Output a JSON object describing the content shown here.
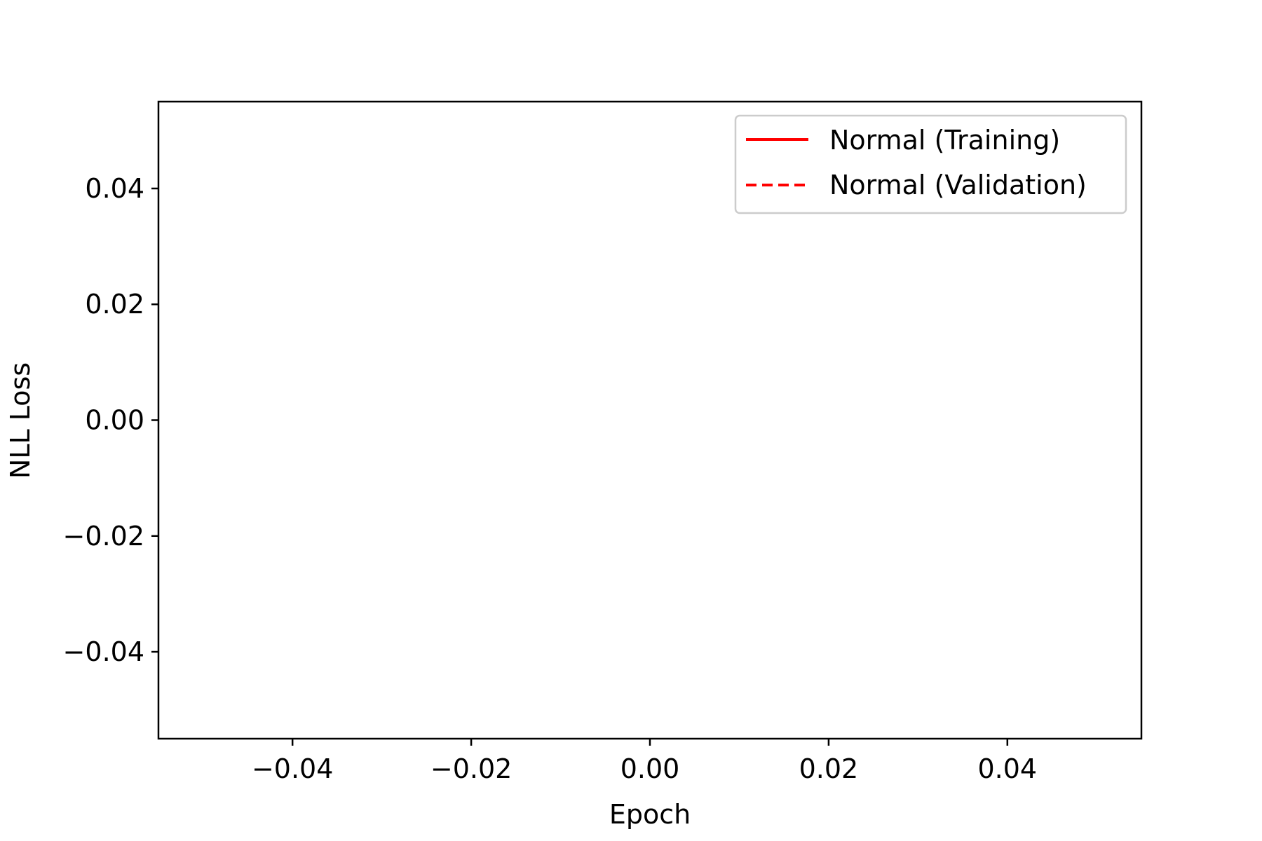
{
  "chart_data": {
    "type": "line",
    "title": "",
    "xlabel": "Epoch",
    "ylabel": "NLL Loss",
    "xlim": [
      -0.055,
      0.055
    ],
    "ylim": [
      -0.055,
      0.055
    ],
    "x_ticks": [
      -0.04,
      -0.02,
      0.0,
      0.02,
      0.04
    ],
    "y_ticks": [
      -0.04,
      -0.02,
      0.0,
      0.02,
      0.04
    ],
    "x_tick_labels": [
      "−0.04",
      "−0.02",
      "0.00",
      "0.02",
      "0.04"
    ],
    "y_tick_labels": [
      "−0.04",
      "−0.02",
      "0.00",
      "0.02",
      "0.04"
    ],
    "grid": false,
    "legend_position": "top-right",
    "series": [
      {
        "name": "Normal (Training)",
        "style": "solid",
        "color": "#ff0000",
        "x": [],
        "y": []
      },
      {
        "name": "Normal (Validation)",
        "style": "dashed",
        "color": "#ff0000",
        "x": [],
        "y": []
      }
    ]
  }
}
